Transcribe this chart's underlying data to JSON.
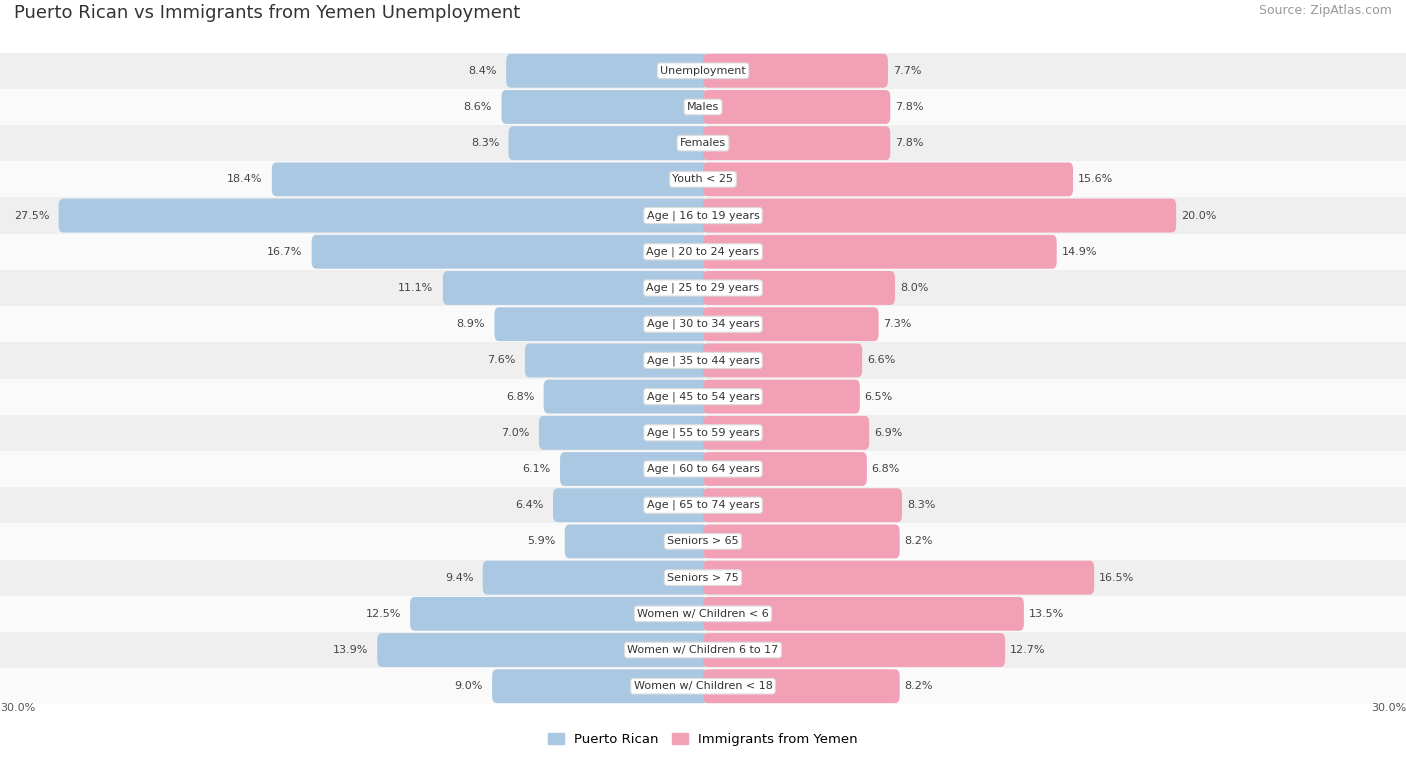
{
  "title": "Puerto Rican vs Immigrants from Yemen Unemployment",
  "source": "Source: ZipAtlas.com",
  "categories": [
    "Unemployment",
    "Males",
    "Females",
    "Youth < 25",
    "Age | 16 to 19 years",
    "Age | 20 to 24 years",
    "Age | 25 to 29 years",
    "Age | 30 to 34 years",
    "Age | 35 to 44 years",
    "Age | 45 to 54 years",
    "Age | 55 to 59 years",
    "Age | 60 to 64 years",
    "Age | 65 to 74 years",
    "Seniors > 65",
    "Seniors > 75",
    "Women w/ Children < 6",
    "Women w/ Children 6 to 17",
    "Women w/ Children < 18"
  ],
  "puerto_rican": [
    8.4,
    8.6,
    8.3,
    18.4,
    27.5,
    16.7,
    11.1,
    8.9,
    7.6,
    6.8,
    7.0,
    6.1,
    6.4,
    5.9,
    9.4,
    12.5,
    13.9,
    9.0
  ],
  "immigrants_yemen": [
    7.7,
    7.8,
    7.8,
    15.6,
    20.0,
    14.9,
    8.0,
    7.3,
    6.6,
    6.5,
    6.9,
    6.8,
    8.3,
    8.2,
    16.5,
    13.5,
    12.7,
    8.2
  ],
  "blue_color": "#abc8e2",
  "pink_color": "#f2a0b5",
  "bg_row_alt": "#efefef",
  "bg_row_white": "#fafafa",
  "axis_max": 30.0,
  "legend_blue": "Puerto Rican",
  "legend_pink": "Immigrants from Yemen",
  "title_fontsize": 13,
  "source_fontsize": 9,
  "bar_label_fontsize": 8,
  "cat_label_fontsize": 8
}
